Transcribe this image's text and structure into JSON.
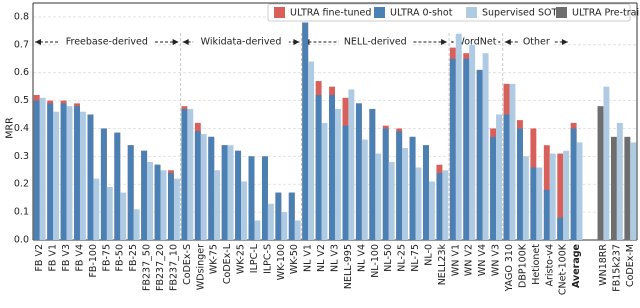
{
  "chart_data": {
    "type": "bar",
    "y_label": "MRR",
    "categories": [
      "FB V2",
      "FB V1",
      "FB V3",
      "FB V4",
      "FB-100",
      "FB-75",
      "FB-50",
      "FB-25",
      "FB237_50",
      "FB237_20",
      "FB237_10",
      "CoDEx-S",
      "WDsinger",
      "WK-75",
      "CoDEx-L",
      "WK-25",
      "ILPC-L",
      "ILPC-S",
      "WK-100",
      "WK-50",
      "NL V1",
      "NL V2",
      "NL V3",
      "NELL-995",
      "NL V4",
      "NL-100",
      "NL-50",
      "NL-25",
      "NL-75",
      "NL-0",
      "NELL23k",
      "WN V1",
      "WN V2",
      "WN V4",
      "WN V3",
      "YAGO 310",
      "DBP100K",
      "Hetionet",
      "Aristo-v4",
      "CNet-100K",
      "Average",
      null,
      "WN18RR",
      "FB15k237",
      "CoDEx-M"
    ],
    "series": [
      {
        "name": "ULTRA fine-tuned",
        "color": "#d9605a",
        "values": [
          0.52,
          0.5,
          0.5,
          0.49,
          0.45,
          0.4,
          0.385,
          0.34,
          0.32,
          0.27,
          0.25,
          0.48,
          0.42,
          0.37,
          0.34,
          0.32,
          0.3,
          0.3,
          0.17,
          0.17,
          0.78,
          0.57,
          0.55,
          0.51,
          0.49,
          0.47,
          0.41,
          0.4,
          0.37,
          0.34,
          0.27,
          0.69,
          0.67,
          0.61,
          0.4,
          0.56,
          0.43,
          0.4,
          0.34,
          0.31,
          0.42,
          null,
          null,
          null,
          null
        ]
      },
      {
        "name": "ULTRA 0-shot",
        "color": "#4a80b3",
        "values": [
          0.5,
          0.49,
          0.49,
          0.48,
          0.45,
          0.4,
          0.385,
          0.34,
          0.32,
          0.27,
          0.24,
          0.47,
          0.39,
          0.37,
          0.34,
          0.32,
          0.3,
          0.3,
          0.17,
          0.17,
          0.78,
          0.52,
          0.52,
          0.41,
          0.49,
          0.47,
          0.4,
          0.39,
          0.37,
          0.34,
          0.24,
          0.65,
          0.65,
          0.61,
          0.37,
          0.45,
          0.4,
          0.26,
          0.18,
          0.08,
          0.4,
          null,
          null,
          null,
          null
        ]
      },
      {
        "name": "Supervised SOTA",
        "color": "#aecbe3",
        "values": [
          0.51,
          0.46,
          0.48,
          0.46,
          0.22,
          0.19,
          0.17,
          0.11,
          0.28,
          0.25,
          0.22,
          0.47,
          0.38,
          0.25,
          0.34,
          0.21,
          0.07,
          0.13,
          0.1,
          0.07,
          0.64,
          0.42,
          0.47,
          0.54,
          0.36,
          0.31,
          0.28,
          0.33,
          0.26,
          0.21,
          0.25,
          0.74,
          0.7,
          0.67,
          0.45,
          0.56,
          0.3,
          0.26,
          0.31,
          0.32,
          0.35,
          null,
          0.55,
          0.42,
          0.35
        ]
      },
      {
        "name": "ULTRA Pre-training",
        "color": "#6e6e6e",
        "values": [
          null,
          null,
          null,
          null,
          null,
          null,
          null,
          null,
          null,
          null,
          null,
          null,
          null,
          null,
          null,
          null,
          null,
          null,
          null,
          null,
          null,
          null,
          null,
          null,
          null,
          null,
          null,
          null,
          null,
          null,
          null,
          null,
          null,
          null,
          null,
          null,
          null,
          null,
          null,
          null,
          null,
          null,
          0.48,
          0.37,
          0.37
        ]
      }
    ],
    "groups": [
      "Freebase-derived",
      "Wikidata-derived",
      "NELL-derived",
      "WordNet",
      "Other"
    ],
    "ylim": [
      0,
      0.85
    ],
    "yticks": [
      {
        "value": 0,
        "label": "0.0"
      },
      0.1,
      0.2,
      0.3,
      0.4,
      0.5,
      0.6,
      0.7,
      0.8
    ],
    "grid": true,
    "legend": "upper right"
  }
}
